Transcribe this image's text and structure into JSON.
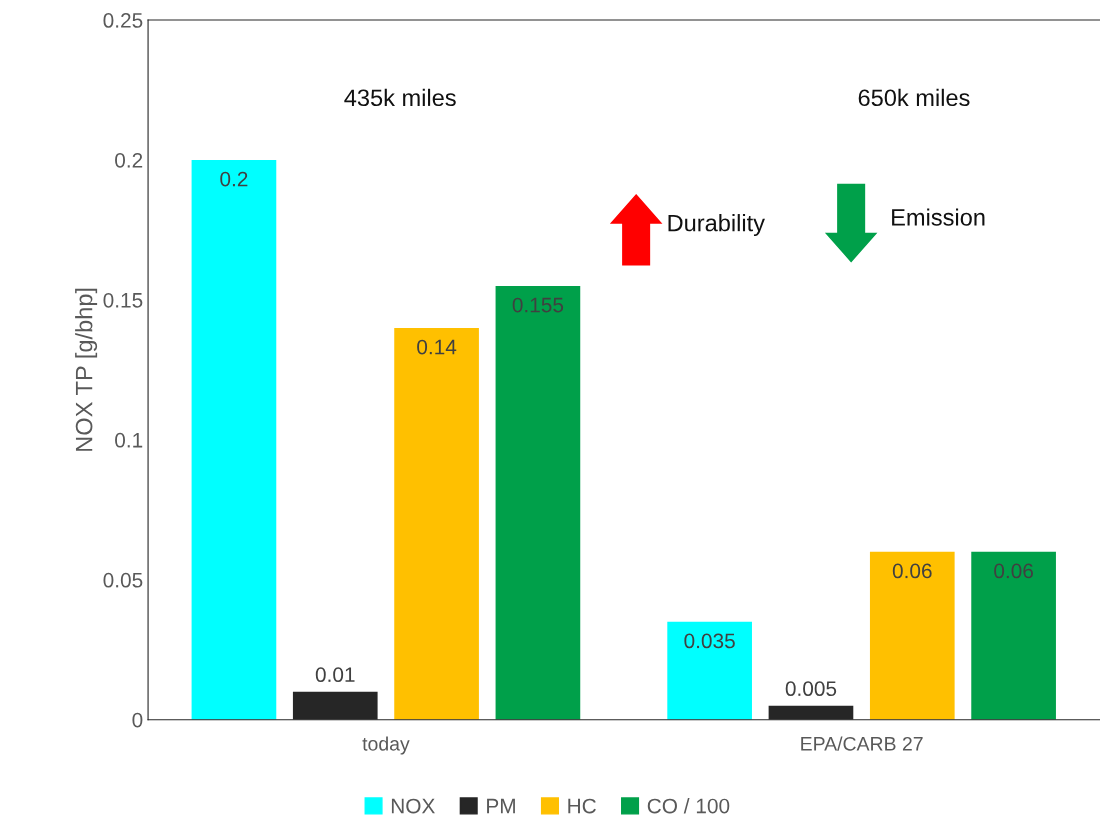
{
  "chart_data": {
    "type": "bar",
    "ylabel": "NOX TP [g/bhp]",
    "categories": [
      "today",
      "EPA/CARB 27"
    ],
    "series": [
      {
        "name": "NOX",
        "color": "#00ffff",
        "values": [
          0.2,
          0.035
        ]
      },
      {
        "name": "PM",
        "color": "#262626",
        "values": [
          0.01,
          0.005
        ]
      },
      {
        "name": "HC",
        "color": "#ffc000",
        "values": [
          0.14,
          0.06
        ]
      },
      {
        "name": "CO / 100",
        "color": "#00a04a",
        "values": [
          0.155,
          0.06
        ]
      }
    ],
    "ylim": [
      0,
      0.25
    ],
    "yticks": [
      0,
      0.05,
      0.1,
      0.15,
      0.2,
      0.25
    ],
    "data_labels": true,
    "grid": false,
    "legend": "bottom",
    "annotations": [
      "435k miles",
      "650k miles",
      "Durability",
      "Emission"
    ]
  }
}
